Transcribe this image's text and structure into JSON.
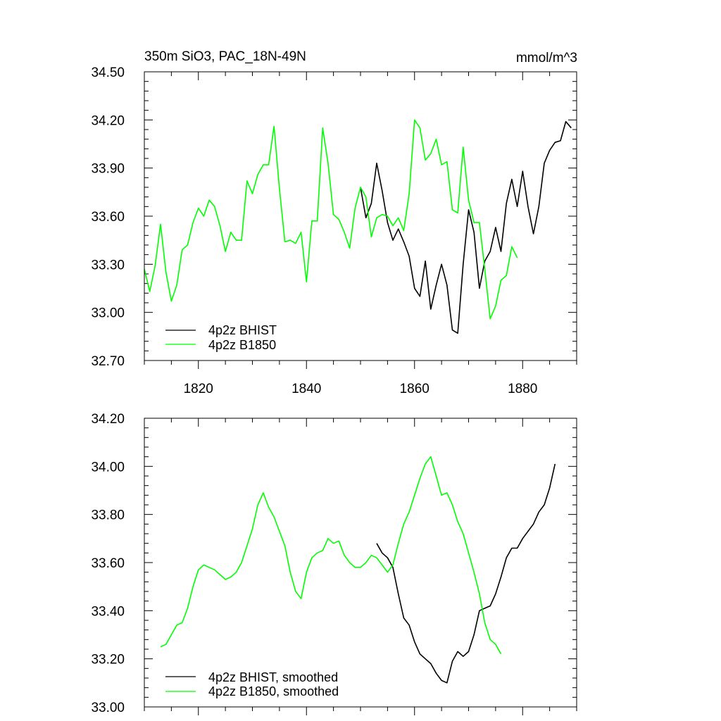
{
  "chart_data": [
    {
      "type": "line",
      "title": "350m SiO3, PAC_18N-49N",
      "units": "mmol/m^3",
      "xlim": [
        1810,
        1890
      ],
      "ylim": [
        32.7,
        34.5
      ],
      "yticks": [
        32.7,
        33.0,
        33.3,
        33.6,
        33.9,
        34.2,
        34.5
      ],
      "ytick_labels": [
        "32.70",
        "33.00",
        "33.30",
        "33.60",
        "33.90",
        "34.20",
        "34.50"
      ],
      "xticks": [
        1820,
        1840,
        1860,
        1880
      ],
      "xtick_labels": [
        "1820",
        "1840",
        "1860",
        "1880"
      ],
      "legend_position": "bottom-left",
      "series": [
        {
          "name": "4p2z BHIST",
          "color": "#000000",
          "x0": 1850,
          "values": [
            33.78,
            33.59,
            33.68,
            33.93,
            33.76,
            33.56,
            33.45,
            33.52,
            33.44,
            33.35,
            33.15,
            33.1,
            33.32,
            33.02,
            33.17,
            33.3,
            33.17,
            32.89,
            32.87,
            33.3,
            33.64,
            33.5,
            33.15,
            33.32,
            33.38,
            33.53,
            33.38,
            33.68,
            33.83,
            33.66,
            33.88,
            33.66,
            33.49,
            33.66,
            33.93,
            34.01,
            34.06,
            34.07,
            34.19,
            34.15
          ]
        },
        {
          "name": "4p2z B1850",
          "color": "#00ff00",
          "x0": 1810,
          "values": [
            33.27,
            33.13,
            33.29,
            33.55,
            33.25,
            33.07,
            33.17,
            33.39,
            33.42,
            33.56,
            33.65,
            33.6,
            33.7,
            33.66,
            33.54,
            33.38,
            33.5,
            33.45,
            33.45,
            33.82,
            33.74,
            33.86,
            33.92,
            33.92,
            34.16,
            33.77,
            33.44,
            33.45,
            33.43,
            33.5,
            33.19,
            33.57,
            33.57,
            34.15,
            33.93,
            33.61,
            33.58,
            33.5,
            33.4,
            33.65,
            33.78,
            33.72,
            33.47,
            33.59,
            33.61,
            33.6,
            33.54,
            33.59,
            33.51,
            33.74,
            34.2,
            34.15,
            33.95,
            33.99,
            34.08,
            33.92,
            33.94,
            33.64,
            33.62,
            34.03,
            33.7,
            33.56,
            33.56,
            33.27,
            32.96,
            33.04,
            33.2,
            33.23,
            33.41,
            33.34
          ]
        }
      ]
    },
    {
      "type": "line",
      "title": "",
      "xlim": [
        1810,
        1890
      ],
      "ylim": [
        33.0,
        34.2
      ],
      "yticks": [
        33.0,
        33.2,
        33.4,
        33.6,
        33.8,
        34.0,
        34.2
      ],
      "ytick_labels": [
        "33.00",
        "33.20",
        "33.40",
        "33.60",
        "33.80",
        "34.00",
        "34.20"
      ],
      "xticks": [
        1820,
        1840,
        1860,
        1880
      ],
      "legend_position": "bottom-left",
      "series": [
        {
          "name": "4p2z BHIST, smoothed",
          "color": "#000000",
          "x0": 1853,
          "values": [
            33.68,
            33.64,
            33.62,
            33.58,
            33.47,
            33.37,
            33.34,
            33.27,
            33.22,
            33.2,
            33.18,
            33.14,
            33.11,
            33.1,
            33.19,
            33.23,
            33.21,
            33.23,
            33.3,
            33.4,
            33.41,
            33.42,
            33.47,
            33.54,
            33.62,
            33.66,
            33.66,
            33.7,
            33.73,
            33.76,
            33.81,
            33.84,
            33.91,
            34.01
          ]
        },
        {
          "name": "4p2z B1850, smoothed",
          "color": "#00ff00",
          "x0": 1813,
          "values": [
            33.25,
            33.26,
            33.3,
            33.34,
            33.35,
            33.41,
            33.5,
            33.57,
            33.59,
            33.58,
            33.57,
            33.55,
            33.53,
            33.54,
            33.56,
            33.6,
            33.67,
            33.74,
            33.84,
            33.89,
            33.83,
            33.79,
            33.73,
            33.67,
            33.56,
            33.48,
            33.45,
            33.56,
            33.62,
            33.64,
            33.65,
            33.7,
            33.68,
            33.69,
            33.63,
            33.6,
            33.58,
            33.58,
            33.6,
            33.63,
            33.62,
            33.59,
            33.56,
            33.59,
            33.68,
            33.76,
            33.81,
            33.88,
            33.95,
            34.01,
            34.04,
            33.96,
            33.88,
            33.89,
            33.84,
            33.77,
            33.72,
            33.64,
            33.56,
            33.47,
            33.35,
            33.28,
            33.26,
            33.22
          ]
        }
      ]
    }
  ]
}
